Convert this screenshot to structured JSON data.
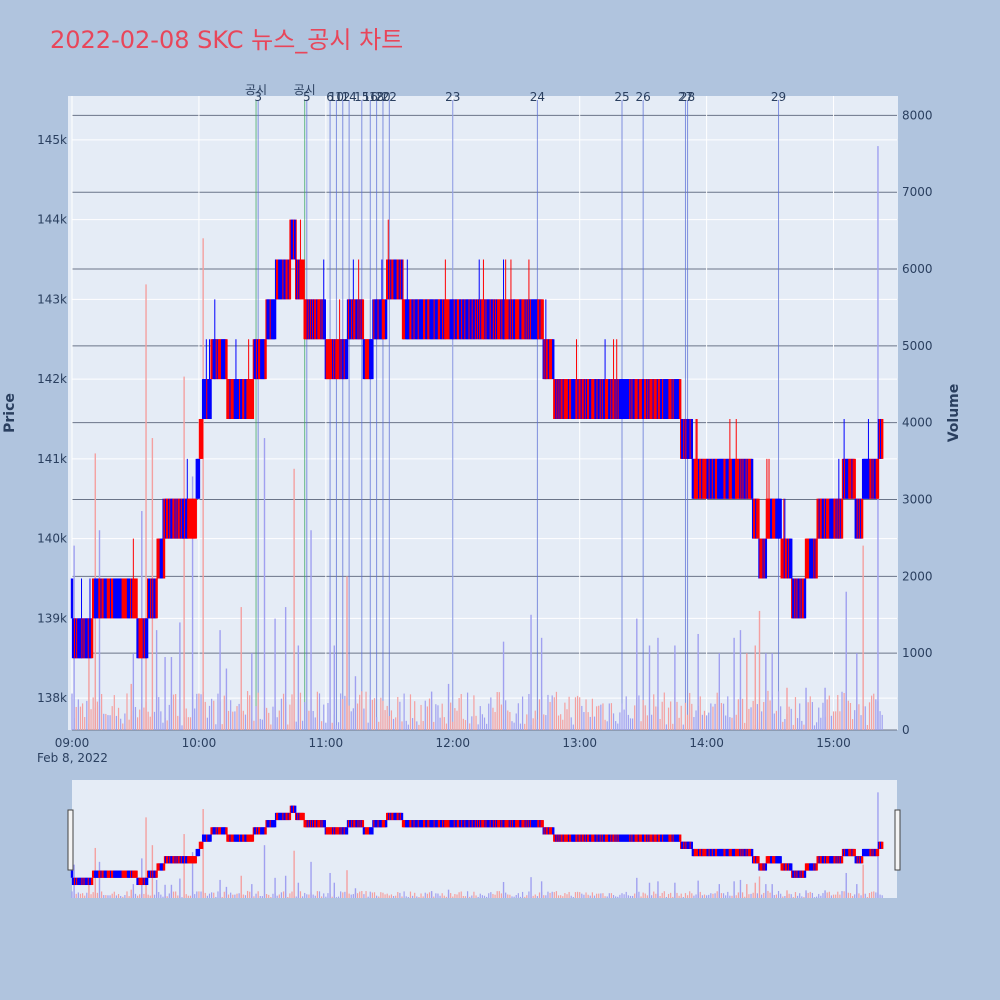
{
  "title": "2022-02-08 SKC 뉴스_공시 차트",
  "colors": {
    "background": "#b0c4de",
    "plot_bg": "#e5ecf6",
    "up": "#ff0000",
    "down": "#0000ff",
    "vol_up": "#f4a0a0",
    "vol_down": "#a0a0f0",
    "news_line": "#5c6fd6",
    "disclosure_line": "#3aa860",
    "title": "#e8465a"
  },
  "chart_data": {
    "type": "candlestick",
    "title": "2022-02-08 SKC 뉴스_공시 차트",
    "xlabel": "",
    "ylabel": "Price",
    "y2label": "Volume",
    "date_label": "Feb 8, 2022",
    "x_ticks": [
      "09:00",
      "10:00",
      "11:00",
      "12:00",
      "13:00",
      "14:00",
      "15:00"
    ],
    "x_range": [
      "09:00",
      "15:30"
    ],
    "y_ticks": [
      138000,
      139000,
      140000,
      141000,
      142000,
      143000,
      144000,
      145000
    ],
    "y_tick_labels": [
      "138k",
      "139k",
      "140k",
      "141k",
      "142k",
      "143k",
      "144k",
      "145k"
    ],
    "ylim": [
      137600,
      145500
    ],
    "y2_ticks": [
      0,
      1000,
      2000,
      3000,
      4000,
      5000,
      6000,
      7000,
      8000
    ],
    "y2_tick_labels": [
      "0",
      "1000",
      "2000",
      "3000",
      "4000",
      "5000",
      "6000",
      "7000",
      "8000"
    ],
    "y2lim": [
      0,
      8200
    ],
    "price_path": [
      {
        "t": "09:00",
        "p": 139000
      },
      {
        "t": "09:05",
        "p": 138500
      },
      {
        "t": "09:10",
        "p": 139000
      },
      {
        "t": "09:15",
        "p": 139300
      },
      {
        "t": "09:22",
        "p": 139200
      },
      {
        "t": "09:28",
        "p": 139300
      },
      {
        "t": "09:33",
        "p": 138700
      },
      {
        "t": "09:38",
        "p": 139200
      },
      {
        "t": "09:45",
        "p": 140200
      },
      {
        "t": "09:52",
        "p": 140200
      },
      {
        "t": "09:58",
        "p": 140300
      },
      {
        "t": "10:03",
        "p": 141800
      },
      {
        "t": "10:10",
        "p": 142300
      },
      {
        "t": "10:15",
        "p": 141800
      },
      {
        "t": "10:23",
        "p": 141800
      },
      {
        "t": "10:30",
        "p": 142300
      },
      {
        "t": "10:38",
        "p": 143200
      },
      {
        "t": "10:45",
        "p": 143600
      },
      {
        "t": "10:52",
        "p": 142700
      },
      {
        "t": "10:58",
        "p": 142800
      },
      {
        "t": "11:03",
        "p": 142000
      },
      {
        "t": "11:08",
        "p": 142300
      },
      {
        "t": "11:14",
        "p": 142800
      },
      {
        "t": "11:20",
        "p": 142300
      },
      {
        "t": "11:26",
        "p": 142800
      },
      {
        "t": "11:32",
        "p": 143200
      },
      {
        "t": "11:40",
        "p": 142800
      },
      {
        "t": "11:50",
        "p": 142800
      },
      {
        "t": "12:00",
        "p": 142800
      },
      {
        "t": "12:20",
        "p": 142800
      },
      {
        "t": "12:40",
        "p": 142800
      },
      {
        "t": "12:45",
        "p": 142200
      },
      {
        "t": "12:50",
        "p": 141800
      },
      {
        "t": "13:10",
        "p": 141800
      },
      {
        "t": "13:30",
        "p": 141800
      },
      {
        "t": "13:45",
        "p": 141800
      },
      {
        "t": "13:50",
        "p": 141200
      },
      {
        "t": "13:56",
        "p": 140800
      },
      {
        "t": "14:10",
        "p": 140800
      },
      {
        "t": "14:20",
        "p": 140800
      },
      {
        "t": "14:26",
        "p": 139800
      },
      {
        "t": "14:32",
        "p": 140300
      },
      {
        "t": "14:38",
        "p": 139700
      },
      {
        "t": "14:44",
        "p": 139200
      },
      {
        "t": "14:50",
        "p": 139800
      },
      {
        "t": "14:56",
        "p": 140300
      },
      {
        "t": "15:02",
        "p": 140300
      },
      {
        "t": "15:08",
        "p": 140800
      },
      {
        "t": "15:12",
        "p": 140300
      },
      {
        "t": "15:16",
        "p": 140800
      },
      {
        "t": "15:20",
        "p": 140800
      },
      {
        "t": "15:23",
        "p": 141300
      }
    ],
    "volume_spikes": [
      {
        "t": "09:01",
        "v": 2400,
        "up": false
      },
      {
        "t": "09:08",
        "v": 1400,
        "up": true
      },
      {
        "t": "09:11",
        "v": 3600,
        "up": true
      },
      {
        "t": "09:13",
        "v": 2600,
        "up": false
      },
      {
        "t": "09:28",
        "v": 600,
        "up": true
      },
      {
        "t": "09:29",
        "v": 1000,
        "up": false
      },
      {
        "t": "09:33",
        "v": 2850,
        "up": false
      },
      {
        "t": "09:35",
        "v": 5800,
        "up": true
      },
      {
        "t": "09:38",
        "v": 3800,
        "up": true
      },
      {
        "t": "09:40",
        "v": 1300,
        "up": false
      },
      {
        "t": "09:44",
        "v": 950,
        "up": false
      },
      {
        "t": "09:47",
        "v": 950,
        "up": false
      },
      {
        "t": "09:51",
        "v": 1400,
        "up": false
      },
      {
        "t": "09:53",
        "v": 4600,
        "up": true
      },
      {
        "t": "09:57",
        "v": 3300,
        "up": false
      },
      {
        "t": "10:02",
        "v": 6400,
        "up": true
      },
      {
        "t": "10:10",
        "v": 1300,
        "up": false
      },
      {
        "t": "10:13",
        "v": 800,
        "up": false
      },
      {
        "t": "10:20",
        "v": 1600,
        "up": true
      },
      {
        "t": "10:25",
        "v": 1000,
        "up": false
      },
      {
        "t": "10:31",
        "v": 3800,
        "up": false
      },
      {
        "t": "10:36",
        "v": 1450,
        "up": false
      },
      {
        "t": "10:41",
        "v": 1600,
        "up": false
      },
      {
        "t": "10:45",
        "v": 3400,
        "up": true
      },
      {
        "t": "10:47",
        "v": 1100,
        "up": false
      },
      {
        "t": "10:53",
        "v": 2600,
        "up": false
      },
      {
        "t": "11:02",
        "v": 1800,
        "up": false
      },
      {
        "t": "11:04",
        "v": 1100,
        "up": false
      },
      {
        "t": "11:10",
        "v": 2000,
        "up": true
      },
      {
        "t": "11:14",
        "v": 700,
        "up": false
      },
      {
        "t": "11:50",
        "v": 500,
        "up": false
      },
      {
        "t": "11:58",
        "v": 600,
        "up": false
      },
      {
        "t": "12:24",
        "v": 1150,
        "up": false
      },
      {
        "t": "12:37",
        "v": 1500,
        "up": false
      },
      {
        "t": "12:42",
        "v": 1200,
        "up": false
      },
      {
        "t": "13:27",
        "v": 1450,
        "up": false
      },
      {
        "t": "13:33",
        "v": 1100,
        "up": false
      },
      {
        "t": "13:37",
        "v": 1200,
        "up": false
      },
      {
        "t": "13:45",
        "v": 1100,
        "up": false
      },
      {
        "t": "13:56",
        "v": 1250,
        "up": false
      },
      {
        "t": "14:06",
        "v": 1000,
        "up": false
      },
      {
        "t": "14:13",
        "v": 1200,
        "up": false
      },
      {
        "t": "14:16",
        "v": 1300,
        "up": false
      },
      {
        "t": "14:19",
        "v": 1000,
        "up": true
      },
      {
        "t": "14:23",
        "v": 1100,
        "up": true
      },
      {
        "t": "14:25",
        "v": 1550,
        "up": true
      },
      {
        "t": "14:28",
        "v": 1000,
        "up": false
      },
      {
        "t": "14:31",
        "v": 1000,
        "up": false
      },
      {
        "t": "14:38",
        "v": 550,
        "up": true
      },
      {
        "t": "14:47",
        "v": 550,
        "up": false
      },
      {
        "t": "14:56",
        "v": 550,
        "up": false
      },
      {
        "t": "15:06",
        "v": 1800,
        "up": false
      },
      {
        "t": "15:11",
        "v": 1000,
        "up": false
      },
      {
        "t": "15:14",
        "v": 2400,
        "up": true
      },
      {
        "t": "15:21",
        "v": 7600,
        "up": false
      }
    ],
    "annotations": [
      {
        "label": "공시",
        "t": "10:27",
        "kind": "disclosure"
      },
      {
        "label": "3",
        "t": "10:28",
        "kind": "news"
      },
      {
        "label": "공시",
        "t": "10:50",
        "kind": "disclosure"
      },
      {
        "label": "5",
        "t": "10:51",
        "kind": "news"
      },
      {
        "label": "6",
        "t": "11:02",
        "kind": "news"
      },
      {
        "label": "10",
        "t": "11:05",
        "kind": "news"
      },
      {
        "label": "12",
        "t": "11:08",
        "kind": "news"
      },
      {
        "label": "14",
        "t": "11:11",
        "kind": "news"
      },
      {
        "label": "15",
        "t": "11:17",
        "kind": "news"
      },
      {
        "label": "16",
        "t": "11:21",
        "kind": "news"
      },
      {
        "label": "18",
        "t": "11:24",
        "kind": "news"
      },
      {
        "label": "20",
        "t": "11:27",
        "kind": "news"
      },
      {
        "label": "22",
        "t": "11:30",
        "kind": "news"
      },
      {
        "label": "23",
        "t": "12:00",
        "kind": "news"
      },
      {
        "label": "24",
        "t": "12:40",
        "kind": "news"
      },
      {
        "label": "25",
        "t": "13:20",
        "kind": "news"
      },
      {
        "label": "26",
        "t": "13:30",
        "kind": "news"
      },
      {
        "label": "27",
        "t": "13:50",
        "kind": "news"
      },
      {
        "label": "28",
        "t": "13:51",
        "kind": "news"
      },
      {
        "label": "29",
        "t": "14:34",
        "kind": "news"
      }
    ],
    "grid": true,
    "range_slider": true
  }
}
